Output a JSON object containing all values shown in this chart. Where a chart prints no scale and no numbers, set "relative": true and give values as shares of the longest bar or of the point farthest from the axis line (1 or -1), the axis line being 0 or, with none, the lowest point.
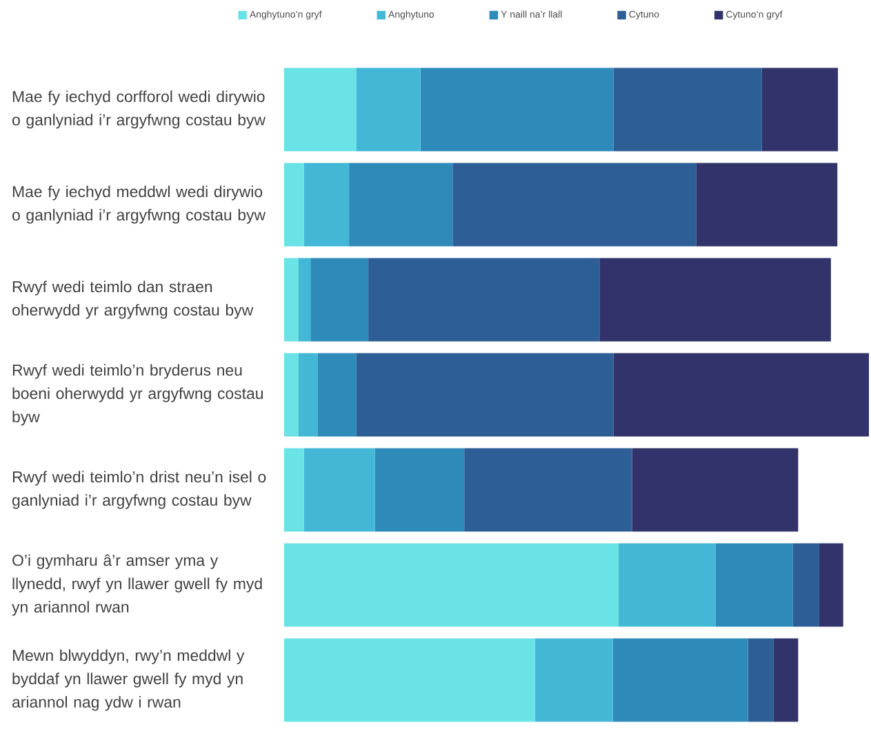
{
  "chart_data": {
    "type": "bar",
    "orientation": "horizontal",
    "stacked": true,
    "relative": true,
    "legend": "top",
    "categories": [
      "Mae fy iechyd corfforol wedi dirywio o ganlyniad i’r argyfwng costau byw",
      "Mae fy iechyd meddwl wedi dirywio o ganlyniad i’r argyfwng costau byw",
      "Rwyf wedi teimlo dan straen oherwydd yr argyfwng costau byw",
      "Rwyf wedi teimlo’n bryderus neu boeni oherwydd yr argyfwng costau byw",
      "Rwyf wedi teimlo’n drist neu’n isel o ganlyniad i’r argyfwng costau byw",
      "O’i gymharu â’r amser yma y llynedd, rwyf yn llawer gwell fy myd yn ariannol rwan",
      "Mewn blwyddyn, rwy’n meddwl y byddaf yn llawer gwell fy myd yn ariannol nag ydw i rwan"
    ],
    "series": [
      {
        "name": "Anghytuno’n gryf",
        "color": "#6ae3e6",
        "values": [
          0.123,
          0.034,
          0.024,
          0.024,
          0.034,
          0.572,
          0.429
        ]
      },
      {
        "name": "Anghytuno",
        "color": "#42b8d6",
        "values": [
          0.11,
          0.077,
          0.021,
          0.033,
          0.121,
          0.166,
          0.133
        ]
      },
      {
        "name": "Y naill na’r llall",
        "color": "#2e8ab9",
        "values": [
          0.33,
          0.177,
          0.099,
          0.066,
          0.153,
          0.132,
          0.231
        ]
      },
      {
        "name": "Cytuno",
        "color": "#2d5e96",
        "values": [
          0.254,
          0.417,
          0.396,
          0.44,
          0.287,
          0.045,
          0.044
        ]
      },
      {
        "name": "Cytuno’n gryf",
        "color": "#31336a",
        "values": [
          0.13,
          0.241,
          0.395,
          0.437,
          0.284,
          0.041,
          0.042
        ]
      }
    ]
  }
}
